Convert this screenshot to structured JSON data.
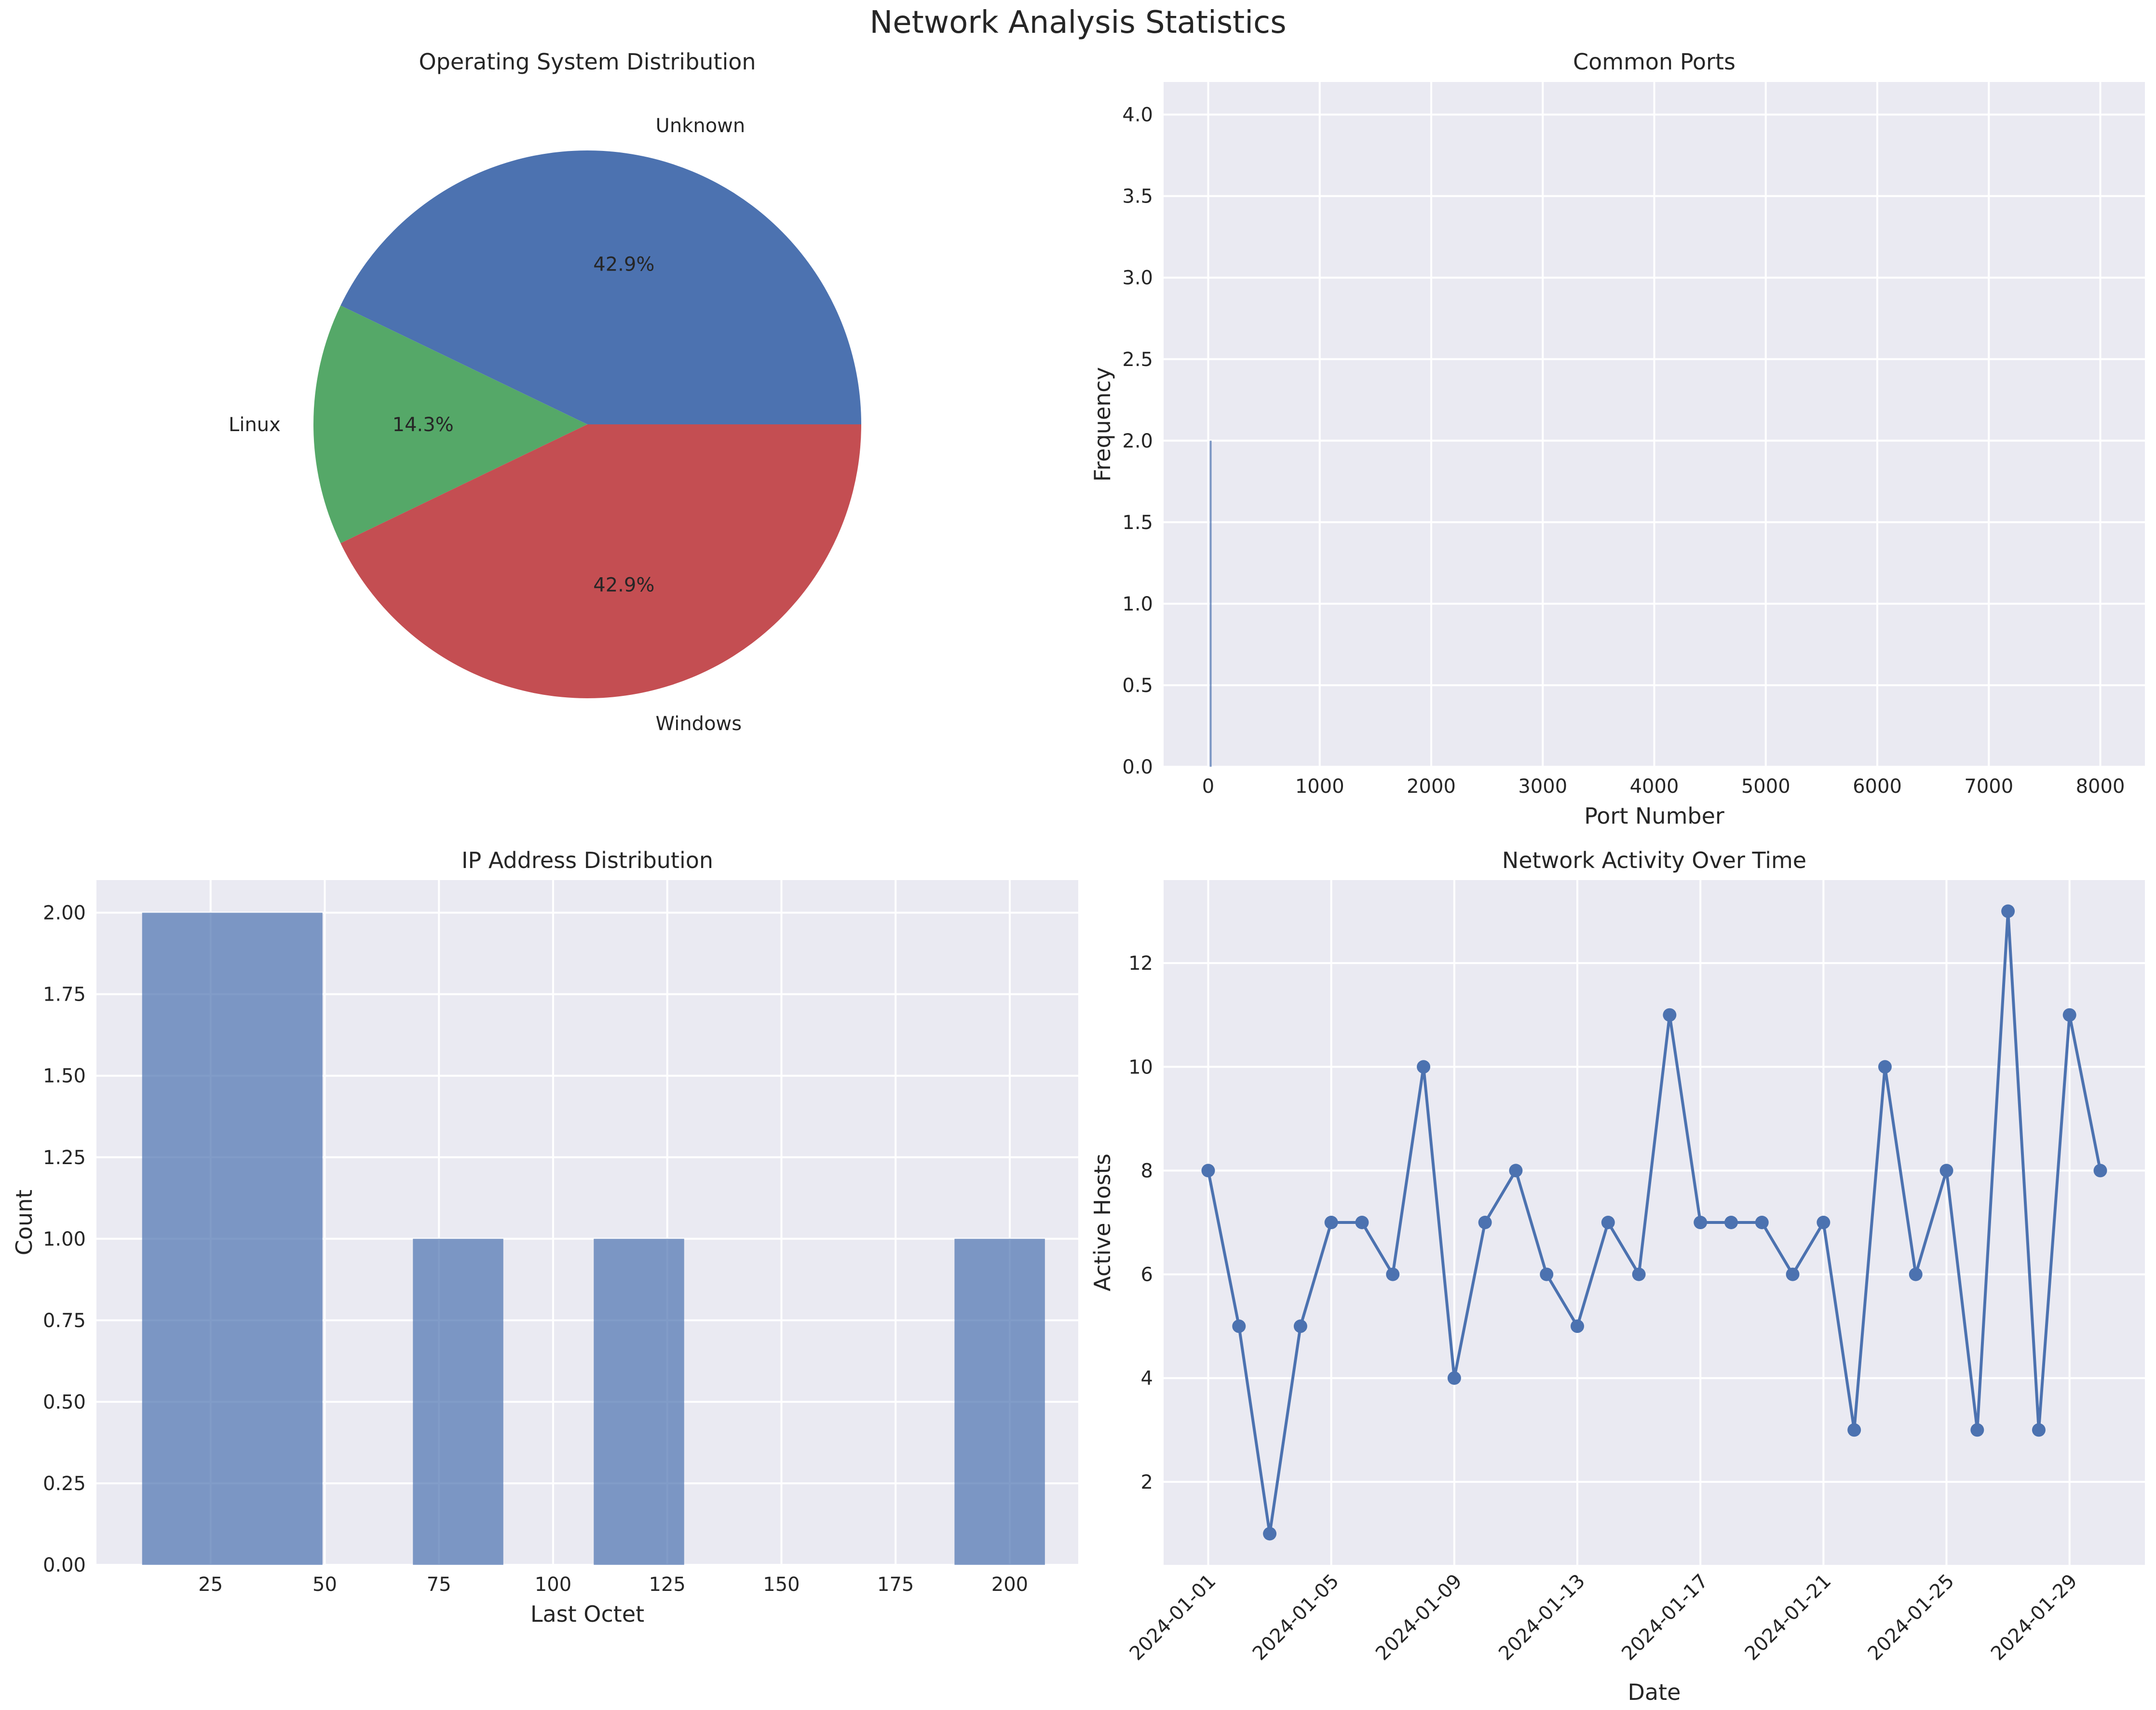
{
  "figure": {
    "title": "Network Analysis Statistics"
  },
  "colors": {
    "panel_bg": "#eaeaf2",
    "grid": "#ffffff",
    "blue": "#4c72b0",
    "green": "#55a868",
    "red": "#c44e52",
    "text": "#262626"
  },
  "chart_data": [
    {
      "type": "pie",
      "title": "Operating System Distribution",
      "labels": [
        "Unknown",
        "Linux",
        "Windows"
      ],
      "values": [
        42.9,
        14.3,
        42.9
      ],
      "pct_labels": [
        "42.9%",
        "14.3%",
        "42.9%"
      ],
      "colors": [
        "#4c72b0",
        "#55a868",
        "#c44e52"
      ]
    },
    {
      "type": "bar",
      "title": "Common Ports",
      "xlabel": "Port Number",
      "ylabel": "Frequency",
      "xlim": [
        -400,
        8400
      ],
      "ylim": [
        0,
        4.2
      ],
      "xticks": [
        0,
        1000,
        2000,
        3000,
        4000,
        5000,
        6000,
        7000,
        8000
      ],
      "yticks": [
        0.0,
        0.5,
        1.0,
        1.5,
        2.0,
        2.5,
        3.0,
        3.5,
        4.0
      ],
      "ytick_labels": [
        "0.0",
        "0.5",
        "1.0",
        "1.5",
        "2.0",
        "2.5",
        "3.0",
        "3.5",
        "4.0"
      ],
      "bars": [
        {
          "x": 22,
          "value": 2
        }
      ]
    },
    {
      "type": "bar",
      "title": "IP Address Distribution",
      "xlabel": "Last Octet",
      "ylabel": "Count",
      "xlim": [
        0,
        215
      ],
      "ylim": [
        0,
        2.1
      ],
      "xticks": [
        25,
        50,
        75,
        100,
        125,
        150,
        175,
        200
      ],
      "yticks": [
        0.0,
        0.25,
        0.5,
        0.75,
        1.0,
        1.25,
        1.5,
        1.75,
        2.0
      ],
      "ytick_labels": [
        "0.00",
        "0.25",
        "0.50",
        "0.75",
        "1.00",
        "1.25",
        "1.50",
        "1.75",
        "2.00"
      ],
      "bins": [
        {
          "start": 10,
          "end": 49.5,
          "value": 2
        },
        {
          "start": 69.3,
          "end": 89.1,
          "value": 1
        },
        {
          "start": 108.9,
          "end": 128.7,
          "value": 1
        },
        {
          "start": 187.9,
          "end": 207.7,
          "value": 1
        }
      ]
    },
    {
      "type": "line",
      "title": "Network Activity Over Time",
      "xlabel": "Date",
      "ylabel": "Active Hosts",
      "ylim": [
        0.4,
        13.6
      ],
      "yticks": [
        2,
        4,
        6,
        8,
        10,
        12
      ],
      "xtick_labels": [
        "2024-01-01",
        "2024-01-05",
        "2024-01-09",
        "2024-01-13",
        "2024-01-17",
        "2024-01-21",
        "2024-01-25",
        "2024-01-29"
      ],
      "x": [
        "2024-01-01",
        "2024-01-02",
        "2024-01-03",
        "2024-01-04",
        "2024-01-05",
        "2024-01-06",
        "2024-01-07",
        "2024-01-08",
        "2024-01-09",
        "2024-01-10",
        "2024-01-11",
        "2024-01-12",
        "2024-01-13",
        "2024-01-14",
        "2024-01-15",
        "2024-01-16",
        "2024-01-17",
        "2024-01-18",
        "2024-01-19",
        "2024-01-20",
        "2024-01-21",
        "2024-01-22",
        "2024-01-23",
        "2024-01-24",
        "2024-01-25",
        "2024-01-26",
        "2024-01-27",
        "2024-01-28",
        "2024-01-29",
        "2024-01-30"
      ],
      "values": [
        8,
        5,
        1,
        5,
        7,
        7,
        6,
        10,
        4,
        7,
        8,
        6,
        5,
        7,
        6,
        11,
        7,
        7,
        7,
        6,
        7,
        3,
        10,
        6,
        8,
        3,
        13,
        3,
        11,
        8
      ]
    }
  ]
}
